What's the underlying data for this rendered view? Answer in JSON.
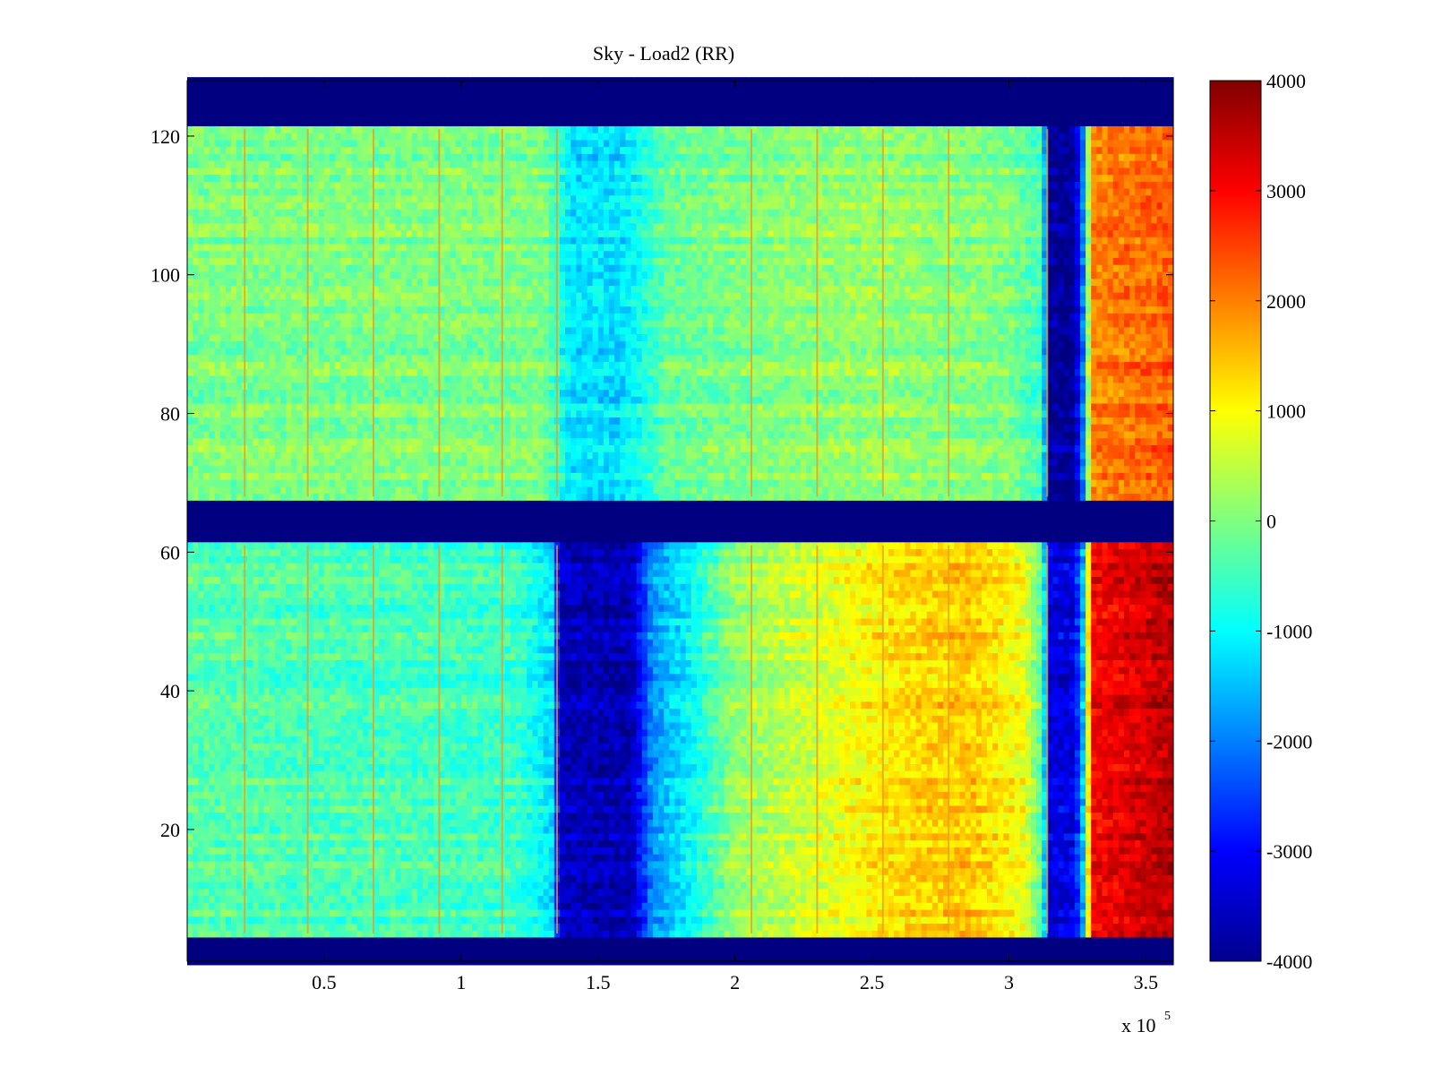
{
  "chart_data": {
    "type": "heatmap",
    "title": "Sky - Load2 (RR)",
    "xlabel": "",
    "ylabel": "",
    "x_multiplier_label": "x 10",
    "x_multiplier_exponent": "5",
    "xlim": [
      0,
      3.6
    ],
    "ylim": [
      1,
      128
    ],
    "xticks": [
      0.5,
      1,
      1.5,
      2,
      2.5,
      3,
      3.5
    ],
    "xtick_labels": [
      "0.5",
      "1",
      "1.5",
      "2",
      "2.5",
      "3",
      "3.5"
    ],
    "yticks": [
      20,
      40,
      60,
      80,
      100,
      120
    ],
    "ytick_labels": [
      "20",
      "40",
      "60",
      "80",
      "100",
      "120"
    ],
    "colormap": "jet",
    "clim": [
      -4000,
      4000
    ],
    "colorbar_ticks": [
      4000,
      3000,
      2000,
      1000,
      0,
      -1000,
      -2000,
      -3000,
      -4000
    ],
    "colorbar_labels": [
      "4000",
      "3000",
      "2000",
      "1000",
      "0",
      "-1000",
      "-2000",
      "-3000",
      "-4000"
    ],
    "masked_rows": [
      [
        1,
        4
      ],
      [
        62,
        67
      ],
      [
        122,
        128
      ]
    ],
    "column_profiles": {
      "upper": [
        [
          0.0,
          0
        ],
        [
          1.3,
          0
        ],
        [
          1.36,
          -700
        ],
        [
          1.4,
          -1200
        ],
        [
          1.58,
          -1200
        ],
        [
          1.66,
          -800
        ],
        [
          1.75,
          -200
        ],
        [
          2.0,
          0
        ],
        [
          2.5,
          200
        ],
        [
          3.0,
          0
        ],
        [
          3.12,
          -500
        ],
        [
          3.15,
          -3800
        ],
        [
          3.24,
          -3800
        ],
        [
          3.28,
          -1500
        ],
        [
          3.3,
          2000
        ],
        [
          3.6,
          2300
        ]
      ],
      "lower": [
        [
          0.0,
          -300
        ],
        [
          1.2,
          -500
        ],
        [
          1.33,
          -1200
        ],
        [
          1.36,
          -3500
        ],
        [
          1.62,
          -3600
        ],
        [
          1.7,
          -1800
        ],
        [
          1.85,
          -900
        ],
        [
          2.0,
          200
        ],
        [
          2.3,
          700
        ],
        [
          2.6,
          1300
        ],
        [
          2.85,
          1500
        ],
        [
          3.05,
          900
        ],
        [
          3.12,
          -300
        ],
        [
          3.15,
          -3200
        ],
        [
          3.24,
          -3200
        ],
        [
          3.28,
          -1000
        ],
        [
          3.3,
          3000
        ],
        [
          3.6,
          3600
        ]
      ]
    },
    "vertical_streaks_x": [
      0.21,
      0.44,
      0.68,
      0.92,
      1.15,
      1.35,
      2.06,
      2.3,
      2.54,
      2.78,
      3.14
    ]
  }
}
